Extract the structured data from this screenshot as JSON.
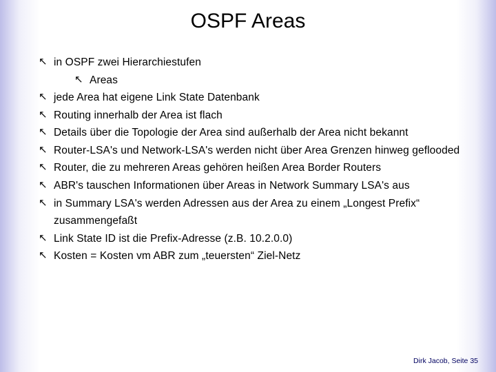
{
  "title": "OSPF Areas",
  "bullets": {
    "b0": "in OSPF zwei Hierarchiestufen",
    "b0_0": "Areas",
    "b1": "jede Area hat eigene Link State Datenbank",
    "b2": "Routing innerhalb der Area ist flach",
    "b3": "Details über die Topologie der Area sind außerhalb der Area nicht bekannt",
    "b4": "Router-LSA's und Network-LSA's werden nicht über Area Grenzen hinweg geflooded",
    "b5": "Router, die zu mehreren Areas gehören heißen Area Border Routers",
    "b6": "ABR's tauschen Informationen über Areas in Network Summary LSA's aus",
    "b7": "in Summary LSA's werden Adressen aus der Area zu einem „Longest Prefix“ zusammengefaßt",
    "b8": "Link State ID ist die Prefix-Adresse (z.B. 10.2.0.0)",
    "b9": "Kosten = Kosten vm ABR zum „teuersten“ Ziel-Netz"
  },
  "bullet_glyph": "↖",
  "footer": "Dirk Jacob, Seite 35",
  "colors": {
    "text": "#000000",
    "footer": "#000060",
    "edge_gradient_dark": "#bdbde8",
    "background": "#ffffff"
  }
}
